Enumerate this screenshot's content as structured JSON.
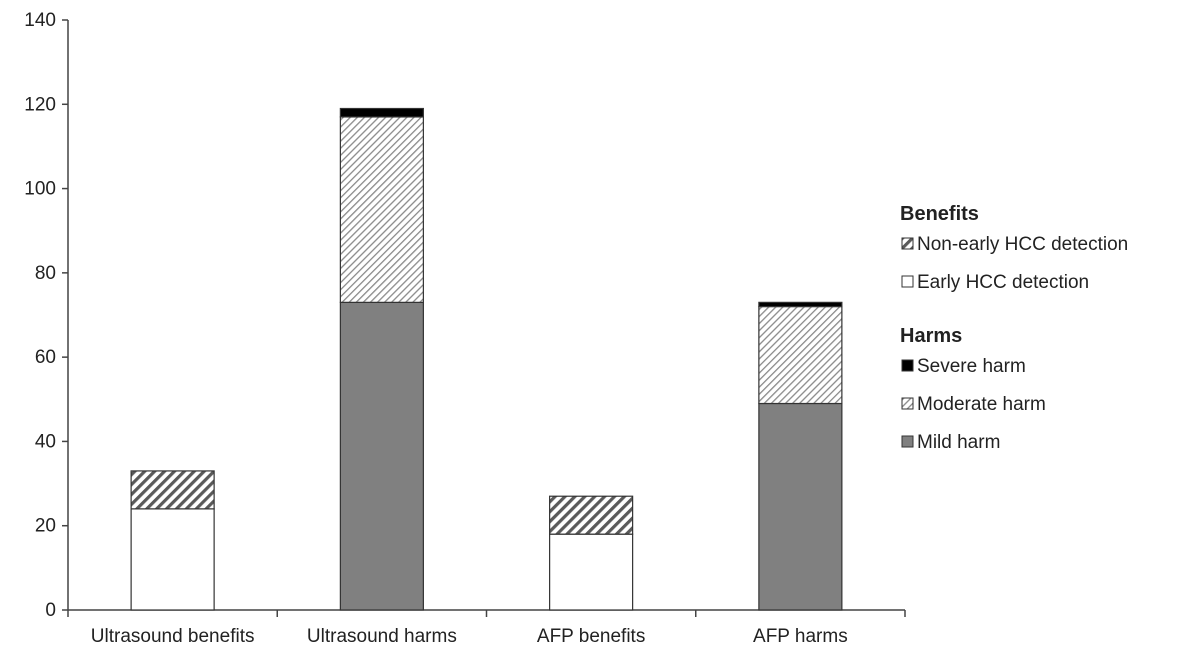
{
  "chart_data": {
    "type": "bar",
    "stacked": true,
    "categories": [
      "Ultrasound benefits",
      "Ultrasound harms",
      "AFP benefits",
      "AFP harms"
    ],
    "series": [
      {
        "name": "Early HCC detection",
        "group": "Benefits",
        "values": [
          24,
          0,
          18,
          0
        ],
        "color": "#ffffff",
        "pattern": "none"
      },
      {
        "name": "Non-early HCC detection",
        "group": "Benefits",
        "values": [
          9,
          0,
          9,
          0
        ],
        "color": "#9a9a9a",
        "pattern": "dense-diagonal"
      },
      {
        "name": "Mild harm",
        "group": "Harms",
        "values": [
          0,
          73,
          0,
          49
        ],
        "color": "#808080",
        "pattern": "none"
      },
      {
        "name": "Moderate harm",
        "group": "Harms",
        "values": [
          0,
          44,
          0,
          23
        ],
        "color": "#d0d0d0",
        "pattern": "light-diagonal"
      },
      {
        "name": "Severe harm",
        "group": "Harms",
        "values": [
          0,
          2,
          0,
          1
        ],
        "color": "#000000",
        "pattern": "none"
      }
    ],
    "ylim": [
      0,
      140
    ],
    "yticks": [
      0,
      20,
      40,
      60,
      80,
      100,
      120,
      140
    ],
    "grid": false,
    "legend": {
      "placement": "right",
      "groups": [
        {
          "heading": "Benefits",
          "items": [
            "Non-early HCC detection",
            "Early HCC detection"
          ]
        },
        {
          "heading": "Harms",
          "items": [
            "Severe harm",
            "Moderate harm",
            "Mild harm"
          ]
        }
      ]
    }
  }
}
